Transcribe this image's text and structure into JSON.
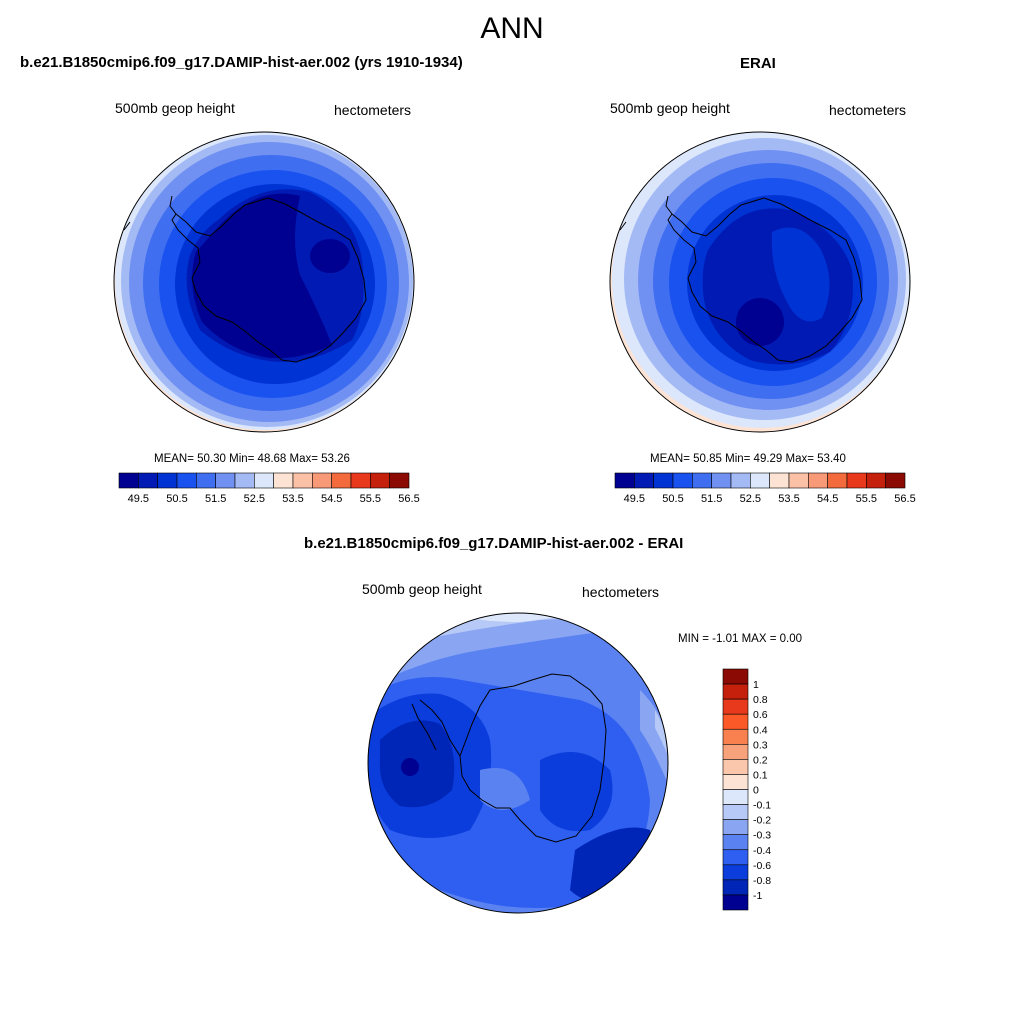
{
  "title": "ANN",
  "panels": [
    {
      "title": "b.e21.B1850cmip6.f09_g17.DAMIP-hist-aer.002 (yrs 1910-1934)",
      "variable": "500mb geop height",
      "units": "hectometers",
      "stats": "MEAN=  50.30  Min=  48.68  Max=  53.26"
    },
    {
      "title": "ERAI",
      "variable": "500mb geop height",
      "units": "hectometers",
      "stats": "MEAN=  50.85  Min=  49.29  Max=  53.40"
    },
    {
      "title": "b.e21.B1850cmip6.f09_g17.DAMIP-hist-aer.002 - ERAI",
      "variable": "500mb geop height",
      "units": "hectometers",
      "stats": "MIN =  -1.01 MAX =   0.00"
    }
  ],
  "colorbar_main": {
    "ticks": [
      "49.5",
      "50.5",
      "51.5",
      "52.5",
      "53.5",
      "54.5",
      "55.5",
      "56.5"
    ],
    "colors": [
      "#000091",
      "#001ab3",
      "#0033d4",
      "#1a52f0",
      "#3f6ef0",
      "#7191f2",
      "#a4baf5",
      "#dce7fb",
      "#fde3d4",
      "#fbc1a7",
      "#f89a78",
      "#f36a3d",
      "#e8391d",
      "#c4200c",
      "#8b0a03"
    ]
  },
  "colorbar_diff": {
    "ticks": [
      "1",
      "0.8",
      "0.6",
      "0.4",
      "0.3",
      "0.2",
      "0.1",
      "0",
      "-0.1",
      "-0.2",
      "-0.3",
      "-0.4",
      "-0.6",
      "-0.8",
      "-1"
    ],
    "colors": [
      "#8b0a03",
      "#c4200c",
      "#e8391d",
      "#fb5a28",
      "#f9804f",
      "#f8a27c",
      "#fbc7ac",
      "#fde3d4",
      "#dce7fb",
      "#b6c9f7",
      "#8aa6f3",
      "#5b82f1",
      "#2f5ff0",
      "#0a3ddc",
      "#0026b8",
      "#000091"
    ]
  }
}
